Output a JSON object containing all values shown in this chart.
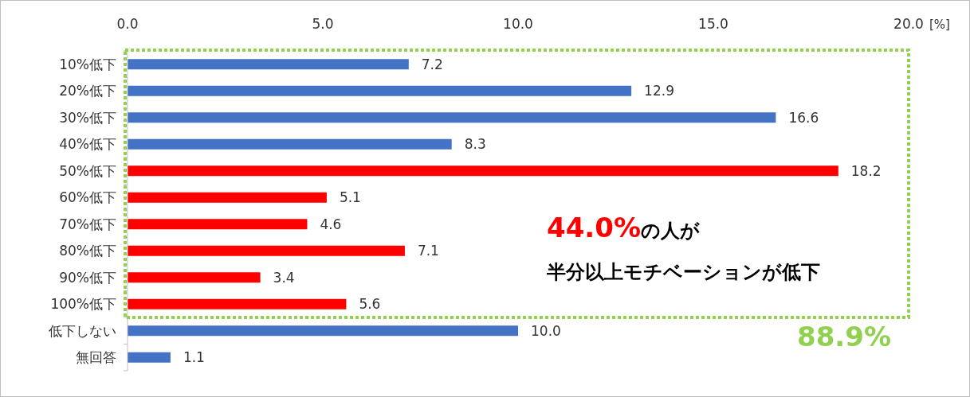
{
  "chart_data": {
    "type": "bar",
    "orientation": "horizontal",
    "categories": [
      "10%低下",
      "20%低下",
      "30%低下",
      "40%低下",
      "50%低下",
      "60%低下",
      "70%低下",
      "80%低下",
      "90%低下",
      "100%低下",
      "低下しない",
      "無回答"
    ],
    "values": [
      7.2,
      12.9,
      16.6,
      8.3,
      18.2,
      5.1,
      4.6,
      7.1,
      3.4,
      5.6,
      10.0,
      1.1
    ],
    "colors": [
      "#4472c4",
      "#4472c4",
      "#4472c4",
      "#4472c4",
      "#ff0000",
      "#ff0000",
      "#ff0000",
      "#ff0000",
      "#ff0000",
      "#ff0000",
      "#4472c4",
      "#4472c4"
    ],
    "value_labels": [
      "7.2",
      "12.9",
      "16.6",
      "8.3",
      "18.2",
      "5.1",
      "4.6",
      "7.1",
      "3.4",
      "5.6",
      "10.0",
      "1.1"
    ],
    "xlim": [
      0,
      20
    ],
    "xticks": [
      {
        "value": 0,
        "label": "0.0"
      },
      {
        "value": 5,
        "label": "5.0"
      },
      {
        "value": 10,
        "label": "10.0"
      },
      {
        "value": 15,
        "label": "15.0"
      },
      {
        "value": 20,
        "label": "20.0"
      }
    ],
    "xlabel": "[%]",
    "annotations": [
      "44.0%",
      "の人が",
      "半分以上モチベーションが低下",
      "88.9%"
    ]
  }
}
